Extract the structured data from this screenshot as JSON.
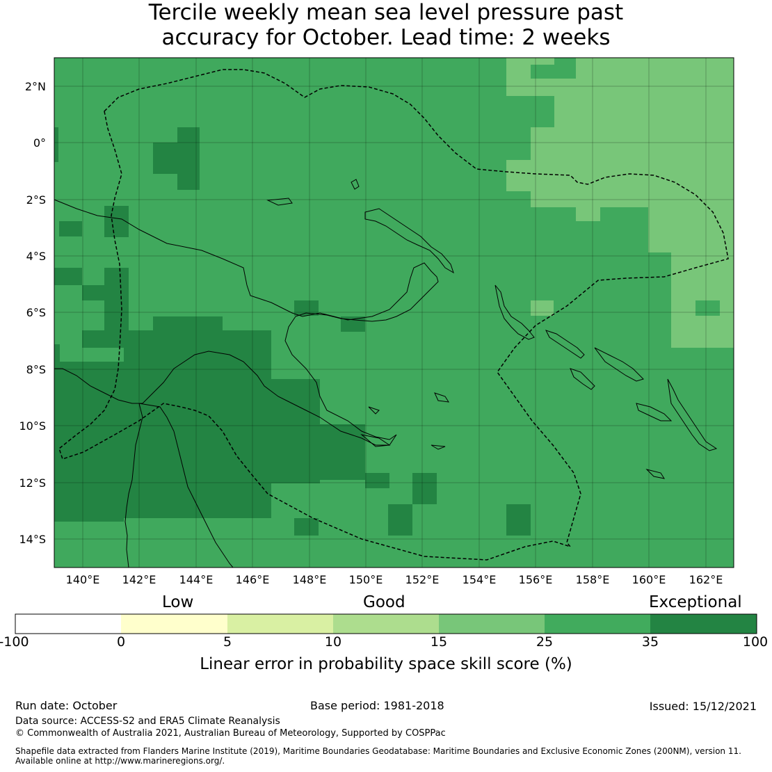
{
  "title_line1": "Tercile weekly mean sea level pressure past",
  "title_line2": "accuracy for October. Lead time: 2 weeks",
  "map": {
    "lon_ticks": [
      "140°E",
      "142°E",
      "144°E",
      "146°E",
      "148°E",
      "150°E",
      "152°E",
      "154°E",
      "156°E",
      "158°E",
      "160°E",
      "162°E"
    ],
    "lat_ticks": [
      "2°N",
      "0°",
      "2°S",
      "4°S",
      "6°S",
      "8°S",
      "10°S",
      "12°S",
      "14°S"
    ],
    "lon_range": [
      139,
      163
    ],
    "lat_range": [
      -15,
      3
    ],
    "background_color": "#40a95d"
  },
  "colorbar": {
    "category_low": "Low",
    "category_good": "Good",
    "category_exceptional": "Exceptional",
    "ticks": [
      "-100",
      "0",
      "5",
      "10",
      "15",
      "25",
      "35",
      "100"
    ],
    "colors": [
      "#ffffff",
      "#ffffcc",
      "#d9f0a3",
      "#addd8e",
      "#78c679",
      "#41ab5d",
      "#238443"
    ],
    "label": "Linear error in probability space skill score (%)"
  },
  "footer": {
    "run_date": "Run date: October",
    "base_period": "Base period: 1981-2018",
    "issued": "Issued: 15/12/2021",
    "data_source": "Data source: ACCESS-S2 and ERA5 Climate Reanalysis",
    "copyright": "© Commonwealth of Australia 2021, Australian Bureau of Meteorology, Supported by COSPPac",
    "shapefile_line1": "Shapefile data extracted from Flanders Marine Institute (2019), Maritime Boundaries Geodatabase: Maritime Boundaries and Exclusive Economic Zones (200NM), version 11.",
    "shapefile_line2": "Available online at http://www.marineregions.org/."
  }
}
